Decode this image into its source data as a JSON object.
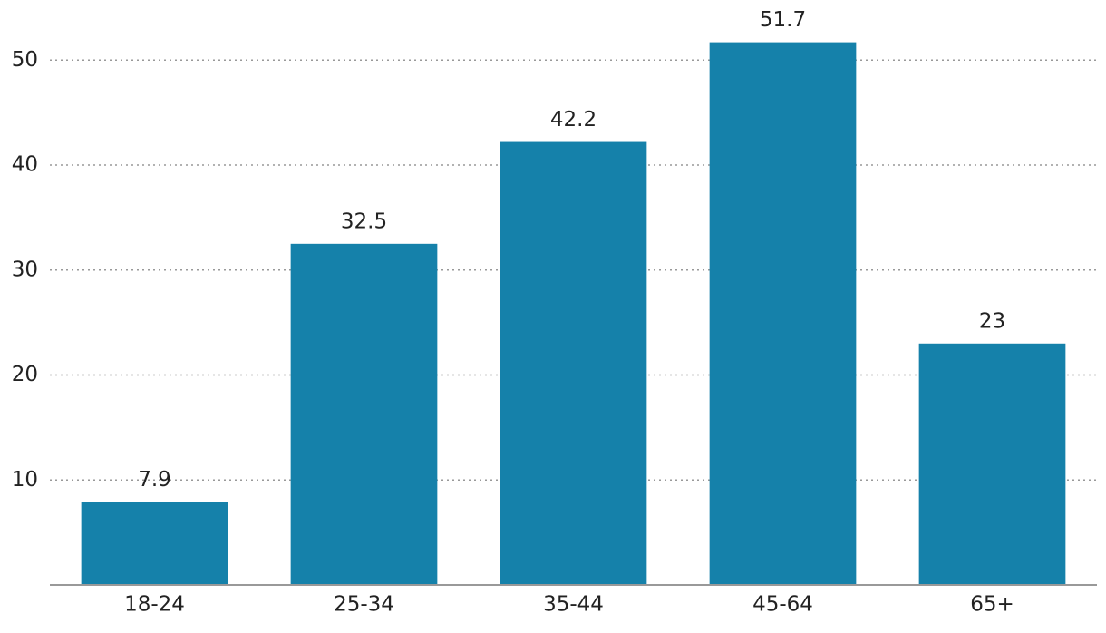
{
  "chart_data": {
    "type": "bar",
    "categories": [
      "18-24",
      "25-34",
      "35-44",
      "45-64",
      "65+"
    ],
    "values": [
      7.9,
      32.5,
      42.2,
      51.7,
      23
    ],
    "color": "#1581aa",
    "ylim": [
      0,
      55
    ],
    "yticks": [
      10,
      20,
      30,
      40,
      50
    ],
    "grid": true
  }
}
